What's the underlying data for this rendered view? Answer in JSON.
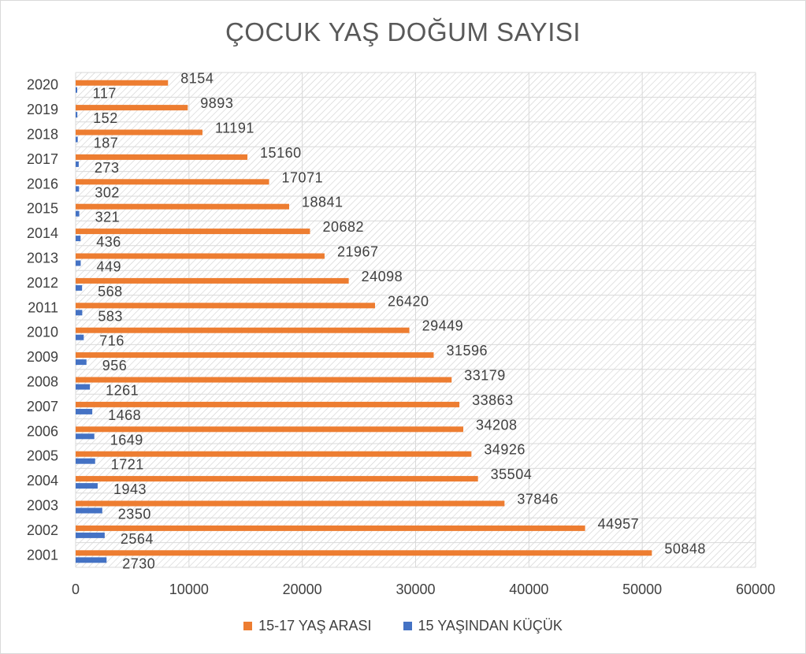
{
  "chart_data": {
    "type": "bar",
    "orientation": "horizontal",
    "title": "ÇOCUK YAŞ DOĞUM SAYISI",
    "categories": [
      "2001",
      "2002",
      "2003",
      "2004",
      "2005",
      "2006",
      "2007",
      "2008",
      "2009",
      "2010",
      "2011",
      "2012",
      "2013",
      "2014",
      "2015",
      "2016",
      "2017",
      "2018",
      "2019",
      "2020"
    ],
    "series": [
      {
        "name": "15-17 YAŞ ARASI",
        "color": "#ED7D31",
        "values": [
          50848,
          44957,
          37846,
          35504,
          34926,
          34208,
          33863,
          33179,
          31596,
          29449,
          26420,
          24098,
          21967,
          20682,
          18841,
          17071,
          15160,
          11191,
          9893,
          8154
        ]
      },
      {
        "name": "15 YAŞINDAN KÜÇÜK",
        "color": "#4472C4",
        "values": [
          2730,
          2564,
          2350,
          1943,
          1721,
          1649,
          1468,
          1261,
          956,
          716,
          583,
          568,
          449,
          436,
          321,
          302,
          273,
          187,
          152,
          117
        ]
      }
    ],
    "xlim": [
      0,
      60000
    ],
    "xticks": [
      "0",
      "10000",
      "20000",
      "30000",
      "40000",
      "50000",
      "60000"
    ],
    "grid": true,
    "legend_position": "bottom",
    "data_labels": true
  }
}
